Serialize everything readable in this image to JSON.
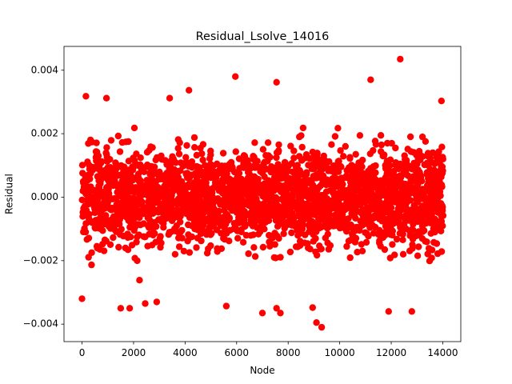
{
  "chart_data": {
    "type": "scatter",
    "title": "Residual_Lsolve_14016",
    "xlabel": "Node",
    "ylabel": "Residual",
    "xlim": [
      -700,
      14700
    ],
    "ylim": [
      -0.00455,
      0.00475
    ],
    "x_ticks": [
      0,
      2000,
      4000,
      6000,
      8000,
      10000,
      12000,
      14000
    ],
    "x_tick_labels": [
      "0",
      "2000",
      "4000",
      "6000",
      "8000",
      "10000",
      "12000",
      "14000"
    ],
    "y_ticks": [
      -0.004,
      -0.002,
      0.0,
      0.002,
      0.004
    ],
    "y_tick_labels": [
      "−0.004",
      "−0.002",
      "0.000",
      "0.002",
      "0.004"
    ],
    "grid": false,
    "series": [
      {
        "color": "#ff0000",
        "marker": "circle",
        "n_points": 14016,
        "x_range": [
          0,
          14015
        ],
        "dense_band": [
          -0.0022,
          0.0022
        ],
        "outliers": [
          {
            "x": 12350,
            "y": 0.00435
          },
          {
            "x": 5950,
            "y": 0.0038
          },
          {
            "x": 11200,
            "y": 0.0037
          },
          {
            "x": 7550,
            "y": 0.00362
          },
          {
            "x": 4150,
            "y": 0.00337
          },
          {
            "x": 150,
            "y": 0.00318
          },
          {
            "x": 950,
            "y": 0.00312
          },
          {
            "x": 3400,
            "y": 0.00312
          },
          {
            "x": 13950,
            "y": 0.00303
          },
          {
            "x": 9100,
            "y": -0.00395
          },
          {
            "x": 9300,
            "y": -0.0041
          },
          {
            "x": 7000,
            "y": -0.00365
          },
          {
            "x": 7700,
            "y": -0.00365
          },
          {
            "x": 12800,
            "y": -0.0036
          },
          {
            "x": 11900,
            "y": -0.0036
          },
          {
            "x": 1500,
            "y": -0.0035
          },
          {
            "x": 1850,
            "y": -0.0035
          },
          {
            "x": 7550,
            "y": -0.0035
          },
          {
            "x": 8950,
            "y": -0.00348
          },
          {
            "x": 5600,
            "y": -0.00343
          },
          {
            "x": 0,
            "y": -0.0032
          },
          {
            "x": 2900,
            "y": -0.0033
          },
          {
            "x": 2450,
            "y": -0.00335
          }
        ]
      }
    ]
  }
}
